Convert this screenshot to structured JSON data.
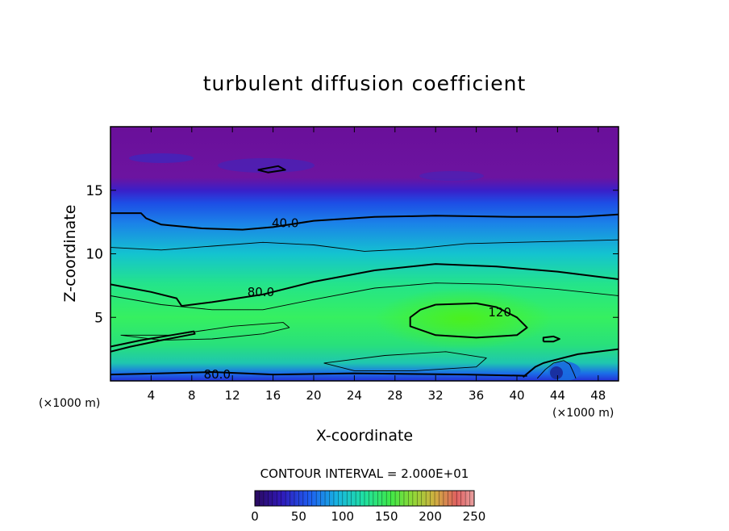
{
  "chart_data": {
    "type": "heatmap",
    "title": "turbulent diffusion coefficient",
    "xlabel": "X-coordinate",
    "ylabel": "Z-coordinate",
    "x_unit_left": "(×1000 m)",
    "x_unit_right": "(×1000 m)",
    "xlim": [
      0,
      50
    ],
    "ylim": [
      0,
      20
    ],
    "xticks": [
      4,
      8,
      12,
      16,
      20,
      24,
      28,
      32,
      36,
      40,
      44,
      48
    ],
    "yticks": [
      5,
      10,
      15
    ],
    "contour_interval_text": "CONTOUR INTERVAL = 2.000E+01",
    "colorbar": {
      "min": 0,
      "max": 250,
      "ticks": [
        0,
        50,
        100,
        150,
        200,
        250
      ]
    },
    "contour_labels": [
      {
        "text": "40.0",
        "x": 17.2,
        "z": 12.4
      },
      {
        "text": "80.0",
        "x": 14.8,
        "z": 7.0
      },
      {
        "text": "120.",
        "x": 38.5,
        "z": 5.4
      },
      {
        "text": "80.0",
        "x": 10.5,
        "z": 0.5
      }
    ],
    "contours": [
      {
        "level": 40,
        "points": [
          [
            0,
            13.2
          ],
          [
            3,
            13.2
          ],
          [
            3.5,
            12.8
          ],
          [
            5,
            12.3
          ],
          [
            9,
            12.0
          ],
          [
            13,
            11.9
          ],
          [
            16,
            12.1
          ],
          [
            20,
            12.6
          ],
          [
            26,
            12.9
          ],
          [
            32,
            13.0
          ],
          [
            40,
            12.9
          ],
          [
            46,
            12.9
          ],
          [
            50,
            13.1
          ]
        ]
      },
      {
        "level": 60,
        "points": [
          [
            0,
            10.5
          ],
          [
            5,
            10.3
          ],
          [
            10,
            10.6
          ],
          [
            15,
            10.9
          ],
          [
            20,
            10.7
          ],
          [
            25,
            10.2
          ],
          [
            30,
            10.4
          ],
          [
            35,
            10.8
          ],
          [
            40,
            10.9
          ],
          [
            45,
            11.0
          ],
          [
            50,
            11.1
          ]
        ]
      },
      {
        "level": 80,
        "points": [
          [
            0,
            7.6
          ],
          [
            4,
            7.0
          ],
          [
            6.5,
            6.5
          ],
          [
            7,
            5.9
          ],
          [
            10,
            6.2
          ],
          [
            15,
            6.8
          ],
          [
            20,
            7.8
          ],
          [
            26,
            8.7
          ],
          [
            32,
            9.2
          ],
          [
            38,
            9.0
          ],
          [
            44,
            8.6
          ],
          [
            48,
            8.2
          ],
          [
            50,
            8.0
          ]
        ]
      },
      {
        "level": 100,
        "points": [
          [
            0,
            6.7
          ],
          [
            5,
            6.0
          ],
          [
            10,
            5.6
          ],
          [
            15,
            5.6
          ],
          [
            20,
            6.4
          ],
          [
            26,
            7.3
          ],
          [
            32,
            7.7
          ],
          [
            38,
            7.6
          ],
          [
            44,
            7.2
          ],
          [
            50,
            6.7
          ]
        ]
      },
      {
        "level": 120,
        "points": [
          [
            32,
            6.0
          ],
          [
            36,
            6.1
          ],
          [
            38,
            5.8
          ],
          [
            40,
            5.0
          ],
          [
            41,
            4.2
          ],
          [
            40,
            3.6
          ],
          [
            36,
            3.4
          ],
          [
            32,
            3.6
          ],
          [
            29.5,
            4.3
          ],
          [
            29.5,
            5.0
          ],
          [
            30.5,
            5.6
          ],
          [
            32,
            6.0
          ]
        ]
      },
      {
        "level": 100,
        "points": [
          [
            1,
            3.6
          ],
          [
            6,
            3.6
          ],
          [
            12,
            4.3
          ],
          [
            17,
            4.6
          ],
          [
            17.6,
            4.2
          ],
          [
            15,
            3.7
          ],
          [
            10,
            3.3
          ],
          [
            5,
            3.2
          ],
          [
            1,
            3.6
          ]
        ]
      },
      {
        "level": 100,
        "points": [
          [
            21,
            1.4
          ],
          [
            27,
            2.0
          ],
          [
            33,
            2.3
          ],
          [
            37,
            1.8
          ],
          [
            36,
            1.1
          ],
          [
            30,
            0.8
          ],
          [
            24,
            0.8
          ],
          [
            21,
            1.4
          ]
        ]
      },
      {
        "level": 80,
        "points": [
          [
            0,
            2.7
          ],
          [
            3,
            3.2
          ],
          [
            6,
            3.6
          ],
          [
            8.2,
            3.9
          ],
          [
            8.3,
            3.7
          ],
          [
            5,
            3.2
          ],
          [
            2,
            2.7
          ],
          [
            0,
            2.3
          ]
        ]
      },
      {
        "level": 80,
        "points": [
          [
            40.6,
            0.3
          ],
          [
            41.8,
            1.1
          ],
          [
            42.6,
            1.4
          ],
          [
            43.5,
            1.6
          ],
          [
            46,
            2.1
          ],
          [
            48,
            2.3
          ],
          [
            50,
            2.5
          ]
        ]
      },
      {
        "level": 60,
        "points": [
          [
            42,
            0.2
          ],
          [
            42.8,
            0.9
          ],
          [
            43.6,
            1.4
          ],
          [
            44.6,
            1.6
          ],
          [
            45.2,
            1.3
          ],
          [
            45.6,
            0.6
          ],
          [
            45.8,
            0.2
          ]
        ]
      },
      {
        "level": 80,
        "points": [
          [
            0,
            0.5
          ],
          [
            5,
            0.6
          ],
          [
            10,
            0.7
          ],
          [
            16,
            0.5
          ],
          [
            24,
            0.6
          ],
          [
            35,
            0.5
          ],
          [
            41,
            0.4
          ]
        ]
      },
      {
        "level": 40,
        "points": [
          [
            42.6,
            3.1
          ],
          [
            43.6,
            3.1
          ],
          [
            44.2,
            3.3
          ],
          [
            43.6,
            3.5
          ],
          [
            42.6,
            3.4
          ],
          [
            42.6,
            3.1
          ]
        ]
      },
      {
        "level": 40,
        "points": [
          [
            14.5,
            16.6
          ],
          [
            16.5,
            16.9
          ],
          [
            17.2,
            16.6
          ],
          [
            15.5,
            16.4
          ],
          [
            14.5,
            16.6
          ]
        ]
      }
    ]
  }
}
